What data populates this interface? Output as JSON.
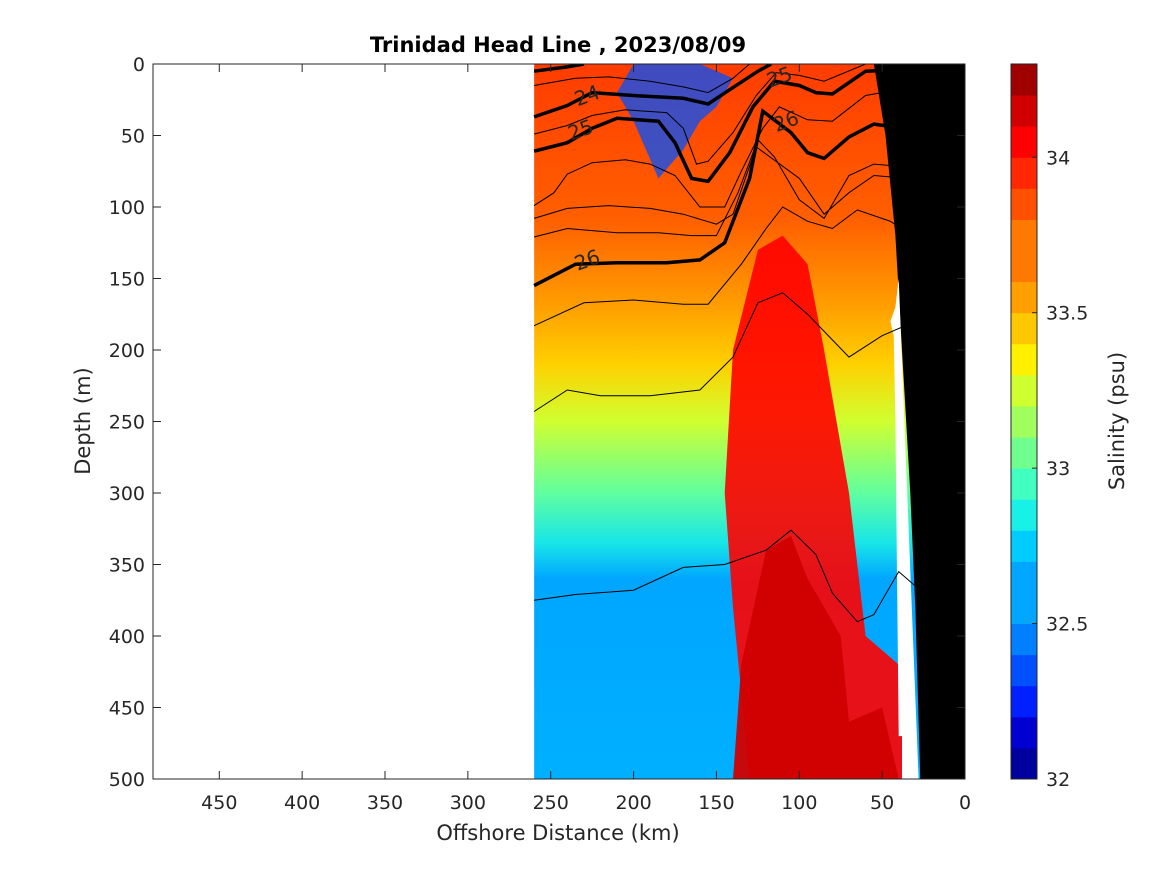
{
  "chart_data": {
    "type": "heatmap",
    "title": "Trinidad Head Line , 2023/08/09",
    "xlabel": "Offshore Distance (km)",
    "ylabel": "Depth (m)",
    "colorbar_label": "Salinity (psu)",
    "xlim": [
      490,
      0
    ],
    "ylim": [
      500,
      0
    ],
    "x_reversed": true,
    "y_reversed": true,
    "x_ticks": [
      450,
      400,
      350,
      300,
      250,
      200,
      150,
      100,
      50,
      0
    ],
    "y_ticks": [
      0,
      50,
      100,
      150,
      200,
      250,
      300,
      350,
      400,
      450,
      500
    ],
    "colorbar_ticks": [
      32,
      32.5,
      33,
      33.5,
      34
    ],
    "colorbar_range": [
      32,
      34.3
    ],
    "colorbar_step": 0.1,
    "colorbar_colors": [
      "#00009f",
      "#0000d0",
      "#0020ff",
      "#0050ff",
      "#0080ff",
      "#00a6ff",
      "#00ccff",
      "#18f0e8",
      "#40ffc0",
      "#70ff8f",
      "#a0ff5f",
      "#d0ff2f",
      "#fff000",
      "#ffc800",
      "#ff9f00",
      "#ff7800",
      "#ff5000",
      "#ff2800",
      "#ff0000",
      "#d00000",
      "#a00000"
    ],
    "section_x_range": [
      260,
      20
    ],
    "grid": false,
    "isopycnal_labels": [
      {
        "text": "24",
        "x": 228,
        "y": 22
      },
      {
        "text": "25",
        "x": 232,
        "y": 46
      },
      {
        "text": "26",
        "x": 228,
        "y": 137
      },
      {
        "text": "25",
        "x": 112,
        "y": 9
      },
      {
        "text": "26",
        "x": 108,
        "y": 40
      }
    ],
    "isopycnals_bold": [
      {
        "level": 24,
        "points": [
          [
            260,
            5
          ],
          [
            240,
            2
          ],
          [
            230,
            0
          ]
        ]
      },
      {
        "level": 24,
        "points": [
          [
            260,
            37
          ],
          [
            240,
            29
          ],
          [
            225,
            20
          ],
          [
            200,
            22
          ],
          [
            170,
            24
          ],
          [
            155,
            28
          ],
          [
            142,
            18
          ],
          [
            125,
            5
          ],
          [
            117,
            0
          ]
        ]
      },
      {
        "level": 25,
        "points": [
          [
            260,
            61
          ],
          [
            240,
            55
          ],
          [
            225,
            45
          ],
          [
            210,
            38
          ],
          [
            185,
            40
          ],
          [
            175,
            55
          ],
          [
            165,
            80
          ],
          [
            155,
            82
          ],
          [
            142,
            62
          ],
          [
            128,
            30
          ],
          [
            115,
            12
          ],
          [
            100,
            15
          ],
          [
            90,
            20
          ],
          [
            80,
            21
          ],
          [
            60,
            5
          ],
          [
            20,
            3
          ]
        ]
      },
      {
        "level": 26,
        "points": [
          [
            260,
            155
          ],
          [
            235,
            140
          ],
          [
            210,
            139
          ],
          [
            180,
            139
          ],
          [
            160,
            137
          ],
          [
            145,
            125
          ],
          [
            130,
            80
          ],
          [
            122,
            33
          ],
          [
            105,
            48
          ],
          [
            95,
            62
          ],
          [
            85,
            66
          ],
          [
            70,
            51
          ],
          [
            55,
            42
          ],
          [
            25,
            47
          ],
          [
            20,
            47
          ]
        ]
      }
    ],
    "isopycnals_thin": [
      {
        "points": [
          [
            260,
            15
          ],
          [
            235,
            10
          ],
          [
            215,
            9
          ],
          [
            190,
            12
          ],
          [
            170,
            16
          ],
          [
            155,
            20
          ],
          [
            140,
            10
          ],
          [
            130,
            0
          ]
        ]
      },
      {
        "points": [
          [
            260,
            49
          ],
          [
            240,
            43
          ],
          [
            225,
            36
          ],
          [
            205,
            32
          ],
          [
            180,
            34
          ],
          [
            170,
            45
          ],
          [
            162,
            70
          ],
          [
            155,
            68
          ],
          [
            140,
            48
          ],
          [
            126,
            22
          ],
          [
            114,
            6
          ],
          [
            100,
            8
          ],
          [
            85,
            12
          ],
          [
            60,
            0
          ]
        ]
      },
      {
        "points": [
          [
            260,
            99
          ],
          [
            248,
            90
          ],
          [
            240,
            77
          ],
          [
            225,
            69
          ],
          [
            205,
            67
          ],
          [
            190,
            70
          ],
          [
            175,
            78
          ],
          [
            160,
            100
          ],
          [
            145,
            100
          ],
          [
            135,
            75
          ],
          [
            122,
            45
          ],
          [
            112,
            30
          ],
          [
            95,
            39
          ],
          [
            80,
            40
          ],
          [
            60,
            22
          ],
          [
            40,
            18
          ],
          [
            20,
            17
          ]
        ]
      },
      {
        "points": [
          [
            260,
            108
          ],
          [
            240,
            101
          ],
          [
            215,
            99
          ],
          [
            190,
            101
          ],
          [
            170,
            105
          ],
          [
            150,
            112
          ],
          [
            140,
            105
          ],
          [
            126,
            58
          ],
          [
            100,
            80
          ],
          [
            85,
            105
          ],
          [
            70,
            90
          ],
          [
            55,
            78
          ],
          [
            35,
            80
          ],
          [
            20,
            90
          ]
        ]
      },
      {
        "points": [
          [
            260,
            121
          ],
          [
            240,
            115
          ],
          [
            210,
            118
          ],
          [
            185,
            118
          ],
          [
            165,
            120
          ],
          [
            150,
            120
          ],
          [
            137,
            90
          ],
          [
            125,
            53
          ],
          [
            115,
            65
          ],
          [
            100,
            95
          ],
          [
            85,
            108
          ],
          [
            70,
            78
          ],
          [
            55,
            70
          ],
          [
            35,
            72
          ],
          [
            20,
            77
          ]
        ]
      },
      {
        "points": [
          [
            260,
            183
          ],
          [
            230,
            167
          ],
          [
            200,
            165
          ],
          [
            170,
            168
          ],
          [
            155,
            168
          ],
          [
            135,
            140
          ],
          [
            120,
            115
          ],
          [
            110,
            100
          ],
          [
            95,
            110
          ],
          [
            80,
            115
          ],
          [
            65,
            102
          ],
          [
            45,
            110
          ],
          [
            25,
            125
          ]
        ]
      },
      {
        "points": [
          [
            260,
            243
          ],
          [
            240,
            228
          ],
          [
            220,
            232
          ],
          [
            190,
            232
          ],
          [
            160,
            228
          ],
          [
            140,
            205
          ],
          [
            125,
            167
          ],
          [
            110,
            160
          ],
          [
            95,
            175
          ],
          [
            70,
            205
          ],
          [
            50,
            190
          ],
          [
            30,
            180
          ],
          [
            20,
            185
          ]
        ]
      },
      {
        "points": [
          [
            260,
            375
          ],
          [
            235,
            371
          ],
          [
            200,
            368
          ],
          [
            170,
            352
          ],
          [
            145,
            350
          ],
          [
            120,
            340
          ],
          [
            105,
            326
          ],
          [
            90,
            343
          ],
          [
            80,
            370
          ],
          [
            65,
            390
          ],
          [
            55,
            385
          ],
          [
            40,
            355
          ],
          [
            25,
            370
          ]
        ]
      }
    ],
    "topography_points": [
      [
        0,
        0
      ],
      [
        0,
        500
      ],
      [
        27,
        500
      ],
      [
        30,
        380
      ],
      [
        33,
        300
      ],
      [
        38,
        200
      ],
      [
        42,
        120
      ],
      [
        48,
        50
      ],
      [
        55,
        0
      ]
    ],
    "white_notch_points": [
      [
        28,
        500
      ],
      [
        38,
        500
      ],
      [
        38,
        470
      ],
      [
        40,
        470
      ],
      [
        42,
        250
      ],
      [
        43,
        190
      ],
      [
        45,
        180
      ],
      [
        42,
        170
      ],
      [
        40,
        150
      ]
    ]
  }
}
